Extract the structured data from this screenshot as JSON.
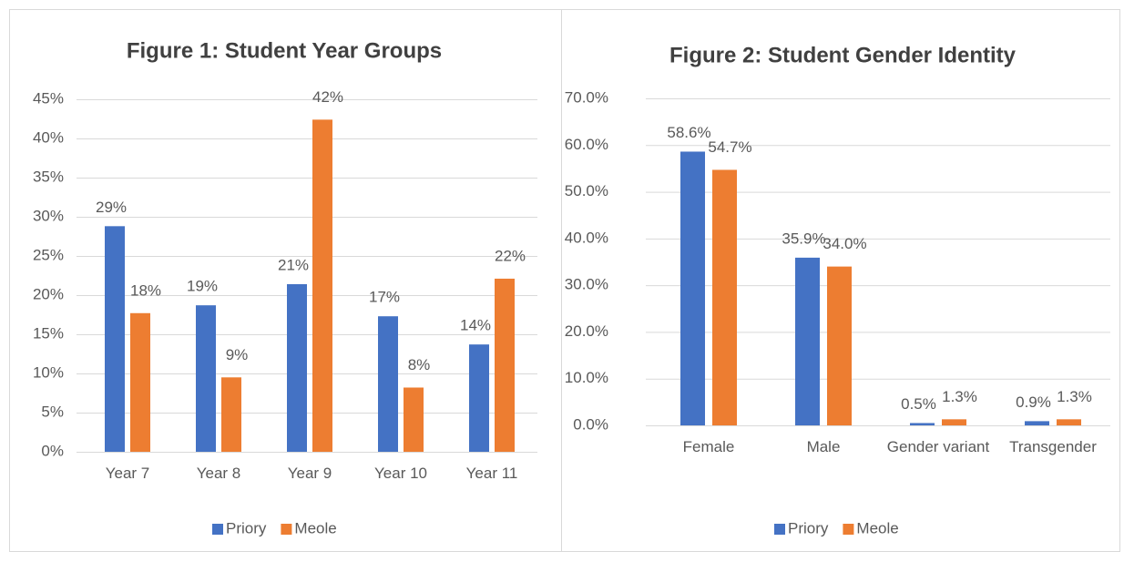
{
  "chart_data": [
    {
      "type": "bar",
      "title": "Figure 1: Student Year Groups",
      "categories": [
        "Year 7",
        "Year 8",
        "Year 9",
        "Year 10",
        "Year 11"
      ],
      "series": [
        {
          "name": "Priory",
          "color": "#4472c4",
          "values": [
            28.8,
            18.7,
            21.4,
            17.3,
            13.7
          ],
          "value_labels": [
            "29%",
            "19%",
            "21%",
            "17%",
            "14%"
          ]
        },
        {
          "name": "Meole",
          "color": "#ed7d31",
          "values": [
            17.7,
            9.5,
            42.4,
            8.2,
            22.1
          ],
          "value_labels": [
            "18%",
            "9%",
            "42%",
            "8%",
            "22%"
          ]
        }
      ],
      "ylim": [
        0,
        45
      ],
      "yticks": [
        {
          "value": 0,
          "label": "0%"
        },
        {
          "value": 5,
          "label": "5%"
        },
        {
          "value": 10,
          "label": "10%"
        },
        {
          "value": 15,
          "label": "15%"
        },
        {
          "value": 20,
          "label": "20%"
        },
        {
          "value": 25,
          "label": "25%"
        },
        {
          "value": 30,
          "label": "30%"
        },
        {
          "value": 35,
          "label": "35%"
        },
        {
          "value": 40,
          "label": "40%"
        },
        {
          "value": 45,
          "label": "45%"
        }
      ],
      "grid": true,
      "legend": "bottom"
    },
    {
      "type": "bar",
      "title": "Figure 2: Student Gender Identity",
      "categories": [
        "Female",
        "Male",
        "Gender variant",
        "Transgender"
      ],
      "series": [
        {
          "name": "Priory",
          "color": "#4472c4",
          "values": [
            58.6,
            35.9,
            0.5,
            0.9
          ],
          "value_labels": [
            "58.6%",
            "35.9%",
            "0.5%",
            "0.9%"
          ]
        },
        {
          "name": "Meole",
          "color": "#ed7d31",
          "values": [
            54.7,
            34.0,
            1.3,
            1.3
          ],
          "value_labels": [
            "54.7%",
            "34.0%",
            "1.3%",
            "1.3%"
          ]
        }
      ],
      "ylim": [
        0,
        70
      ],
      "yticks": [
        {
          "value": 0,
          "label": "0.0%"
        },
        {
          "value": 10,
          "label": "10.0%"
        },
        {
          "value": 20,
          "label": "20.0%"
        },
        {
          "value": 30,
          "label": "30.0%"
        },
        {
          "value": 40,
          "label": "40.0%"
        },
        {
          "value": 50,
          "label": "50.0%"
        },
        {
          "value": 60,
          "label": "60.0%"
        },
        {
          "value": 70,
          "label": "70.0%"
        }
      ],
      "grid": true,
      "legend": "bottom"
    }
  ]
}
